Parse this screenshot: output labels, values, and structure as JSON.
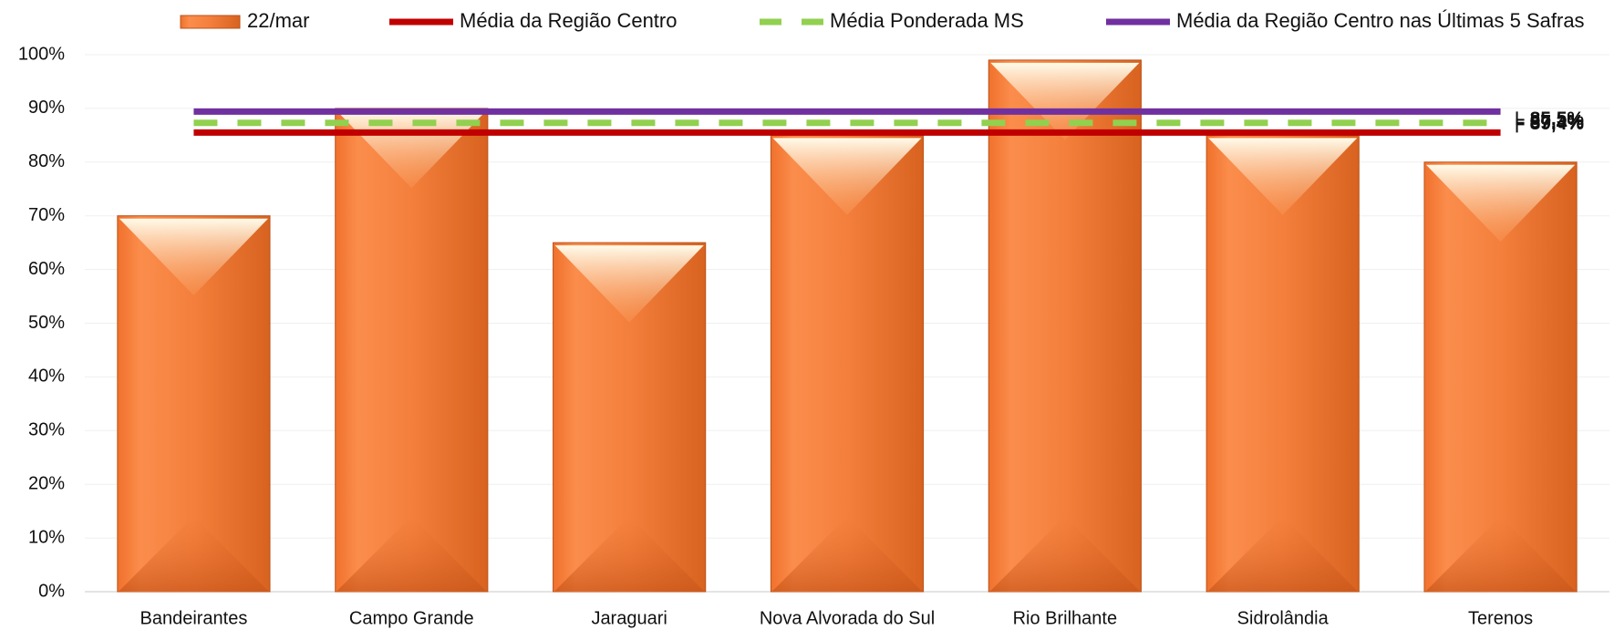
{
  "chart_data": {
    "type": "bar",
    "categories": [
      "Bandeirantes",
      "Campo Grande",
      "Jaraguari",
      "Nova Alvorada do Sul",
      "Rio Brilhante",
      "Sidrolândia",
      "Terenos"
    ],
    "series": [
      {
        "name": "22/mar",
        "color": "#f47f3c",
        "values": [
          70,
          90,
          65,
          85,
          99,
          85,
          80
        ]
      }
    ],
    "reference_lines": [
      {
        "name": "Média da Região Centro",
        "color": "#c00000",
        "value": 85.5,
        "value_label": "85,5%",
        "dashed": false
      },
      {
        "name": "Média Ponderada MS",
        "color": "#92d050",
        "value": 87.3,
        "value_label": "87,3%",
        "dashed": true
      },
      {
        "name": "Média da Região Centro nas Últimas 5 Safras",
        "color": "#7030a0",
        "value": 89.4,
        "value_label": "89,4%",
        "dashed": false
      }
    ],
    "ylim": [
      0,
      100
    ],
    "yticks": [
      {
        "value": 0,
        "label": "0%"
      },
      {
        "value": 10,
        "label": "10%"
      },
      {
        "value": 20,
        "label": "20%"
      },
      {
        "value": 30,
        "label": "30%"
      },
      {
        "value": 40,
        "label": "40%"
      },
      {
        "value": 50,
        "label": "50%"
      },
      {
        "value": 60,
        "label": "60%"
      },
      {
        "value": 70,
        "label": "70%"
      },
      {
        "value": 80,
        "label": "80%"
      },
      {
        "value": 90,
        "label": "90%"
      },
      {
        "value": 100,
        "label": "100%"
      }
    ],
    "grid": true,
    "legend": "top"
  }
}
